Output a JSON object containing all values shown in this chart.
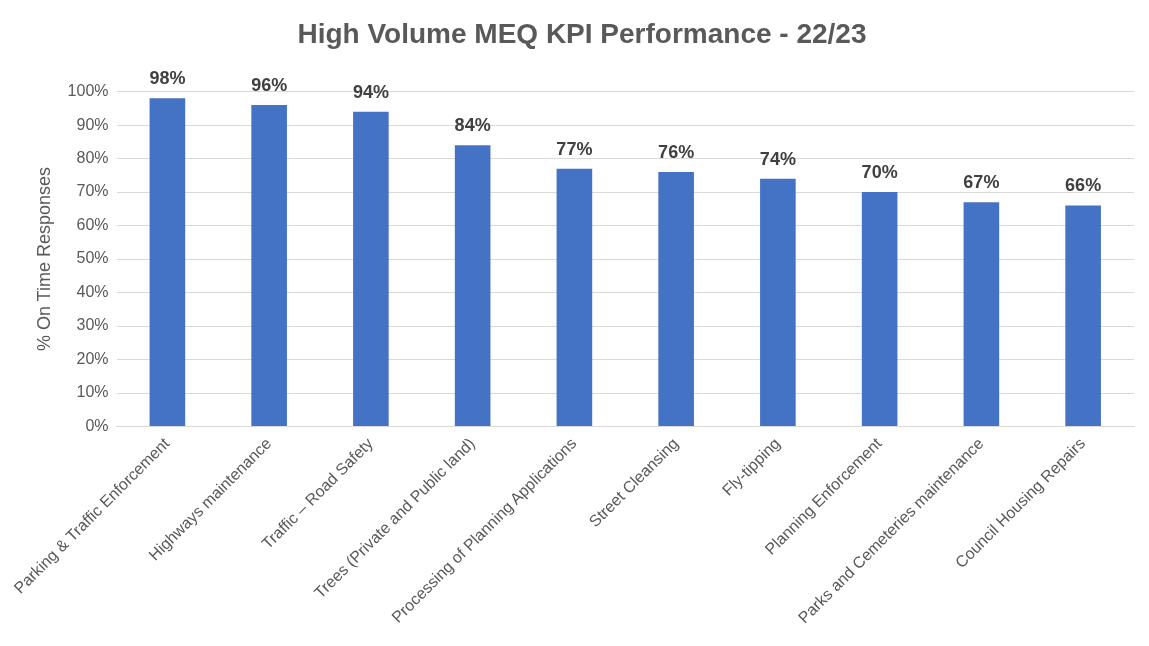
{
  "chart_data": {
    "type": "bar",
    "title": "High Volume MEQ KPI Performance - 22/23",
    "ylabel": "% On Time Responses",
    "categories": [
      "Parking & Traffic Enforcement",
      "Highways maintenance",
      "Traffic – Road Safety",
      "Trees (Private and Public land)",
      "Processing of Planning Applications",
      "Street Cleansing",
      "Fly-tipping",
      "Planning Enforcement",
      "Parks and Cemeteries maintenance",
      "Council Housing Repairs"
    ],
    "values": [
      98,
      96,
      94,
      84,
      77,
      76,
      74,
      70,
      67,
      66
    ],
    "value_labels": [
      "98%",
      "96%",
      "94%",
      "84%",
      "77%",
      "76%",
      "74%",
      "70%",
      "67%",
      "66%"
    ],
    "color": "#4472c4",
    "ylim": [
      0,
      100
    ],
    "yticks": [
      {
        "value": 0,
        "label": "0%"
      },
      {
        "value": 10,
        "label": "10%"
      },
      {
        "value": 20,
        "label": "20%"
      },
      {
        "value": 30,
        "label": "30%"
      },
      {
        "value": 40,
        "label": "40%"
      },
      {
        "value": 50,
        "label": "50%"
      },
      {
        "value": 60,
        "label": "60%"
      },
      {
        "value": 70,
        "label": "70%"
      },
      {
        "value": 80,
        "label": "80%"
      },
      {
        "value": 90,
        "label": "90%"
      },
      {
        "value": 100,
        "label": "100%"
      }
    ],
    "grid": "y",
    "legend": false
  }
}
